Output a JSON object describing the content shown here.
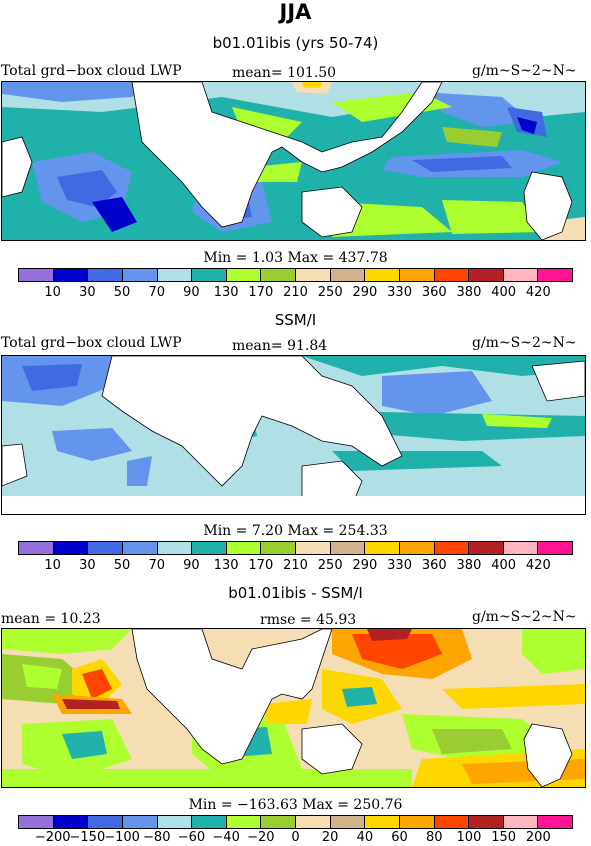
{
  "figure": {
    "title": "JJA",
    "units": "g/m~S~2~N~",
    "colors": [
      "#9370db",
      "#0000cd",
      "#4169e1",
      "#6495ed",
      "#b0e0e6",
      "#20b2aa",
      "#adff2f",
      "#9acd32",
      "#f5deb3",
      "#d2b48c",
      "#ffd700",
      "#ffa500",
      "#ff4500",
      "#b22222",
      "#ffb6c1",
      "#ff1493"
    ]
  },
  "panel1": {
    "title": "b01.01ibis (yrs 50-74)",
    "left_label": "Total grd−box cloud LWP",
    "mean": "mean=  101.50",
    "units": "g/m~S~2~N~",
    "stats": "Min =    1.03  Max = 437.78",
    "ticks": [
      "10",
      "30",
      "50",
      "70",
      "90",
      "130",
      "170",
      "210",
      "250",
      "290",
      "330",
      "360",
      "380",
      "400",
      "420"
    ]
  },
  "panel2": {
    "title": "SSM/I",
    "left_label": "Total grd−box cloud LWP",
    "mean": "mean=   91.84",
    "units": "g/m~S~2~N~",
    "stats": "Min =    7.20  Max = 254.33",
    "ticks": [
      "10",
      "30",
      "50",
      "70",
      "90",
      "130",
      "170",
      "210",
      "250",
      "290",
      "330",
      "360",
      "380",
      "400",
      "420"
    ]
  },
  "panel3": {
    "title": "b01.01ibis - SSM/I",
    "left_label": "mean =   10.23",
    "mean": "rmse =   45.93",
    "units": "g/m~S~2~N~",
    "stats": "Min = −163.63  Max = 250.76",
    "ticks": [
      "−200",
      "−150",
      "−100",
      "−80",
      "−60",
      "−40",
      "−20",
      "0",
      "20",
      "40",
      "60",
      "80",
      "100",
      "150",
      "200"
    ]
  }
}
